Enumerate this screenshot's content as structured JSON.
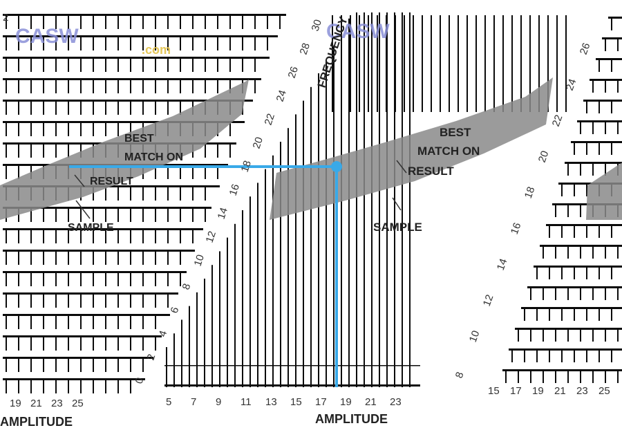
{
  "chart_data": {
    "type": "line",
    "title": "",
    "colors": {
      "bars": "#0a0a0a",
      "band": "#8a8a8a",
      "marker": "#39a9e8",
      "watermark": "#8a90d8",
      "watermark_sub": "#e4c34a"
    },
    "watermark": {
      "text": "CASW",
      "sub": ".com"
    },
    "panels": [
      {
        "name": "left",
        "band_labels": [
          "BEST",
          "MATCH ON",
          "RESULT"
        ],
        "sample_label": "SAMPLE",
        "x_ticks": [
          "19",
          "21",
          "23",
          "25"
        ],
        "x_axis_label": "AMPLITUDE",
        "y_ticks": [
          "2"
        ]
      },
      {
        "name": "center",
        "band_labels": [
          "BEST",
          "MATCH ON",
          "RESULT"
        ],
        "sample_label": "SAMPLE",
        "x_ticks": [
          "5",
          "7",
          "9",
          "11",
          "13",
          "15",
          "17",
          "19",
          "21",
          "23"
        ],
        "x_axis_label": "AMPLITUDE",
        "y_axis_label": "FREQUENCY",
        "y_ticks": [
          "0",
          "2",
          "4",
          "6",
          "8",
          "10",
          "12",
          "14",
          "16",
          "18",
          "20",
          "22",
          "24",
          "26",
          "28",
          "30"
        ],
        "highlight": {
          "x": 19,
          "y": 20
        }
      },
      {
        "name": "right",
        "x_ticks": [
          "15",
          "17",
          "19",
          "21",
          "23",
          "25"
        ],
        "y_ticks": [
          "8",
          "10",
          "12",
          "14",
          "16",
          "18",
          "20",
          "22",
          "24",
          "26"
        ]
      }
    ]
  }
}
